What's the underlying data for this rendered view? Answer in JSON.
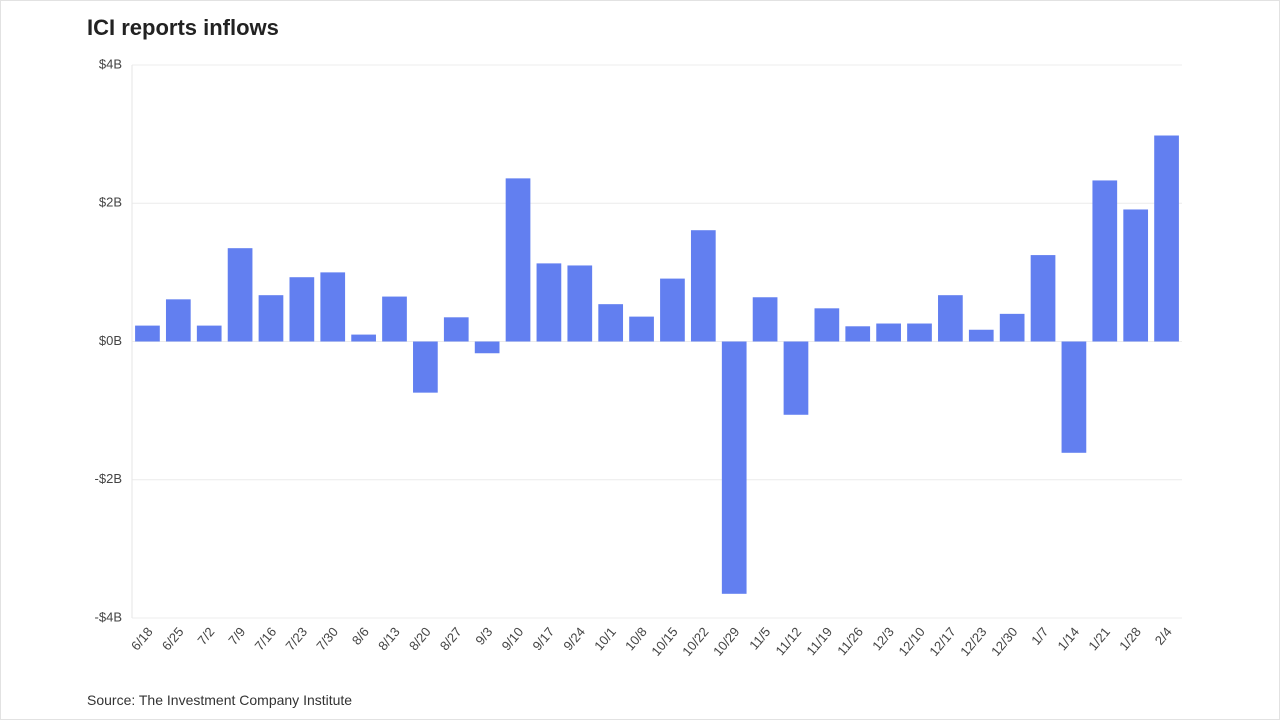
{
  "chart_data": {
    "type": "bar",
    "title": "ICI reports inflows",
    "source": "Source: The Investment Company Institute",
    "categories": [
      "6/18",
      "6/25",
      "7/2",
      "7/9",
      "7/16",
      "7/23",
      "7/30",
      "8/6",
      "8/13",
      "8/20",
      "8/27",
      "9/3",
      "9/10",
      "9/17",
      "9/24",
      "10/1",
      "10/8",
      "10/15",
      "10/22",
      "10/29",
      "11/5",
      "11/12",
      "11/19",
      "11/26",
      "12/3",
      "12/10",
      "12/17",
      "12/23",
      "12/30",
      "1/7",
      "1/14",
      "1/21",
      "1/28",
      "2/4"
    ],
    "values": [
      0.23,
      0.61,
      0.23,
      1.35,
      0.67,
      0.93,
      1.0,
      0.1,
      0.65,
      -0.74,
      0.35,
      -0.17,
      2.36,
      1.13,
      1.1,
      0.54,
      0.36,
      0.91,
      1.61,
      -3.65,
      0.64,
      -1.06,
      0.48,
      0.22,
      0.26,
      0.26,
      0.67,
      0.17,
      0.4,
      1.25,
      -1.61,
      2.33,
      1.91,
      2.98
    ],
    "color": "#627ff0",
    "ylim": [
      -4,
      4
    ],
    "yticks": [
      {
        "value": -4,
        "label": "-$4B"
      },
      {
        "value": -2,
        "label": "-$2B"
      },
      {
        "value": 0,
        "label": "$0B"
      },
      {
        "value": 2,
        "label": "$2B"
      },
      {
        "value": 4,
        "label": "$4B"
      }
    ],
    "grid": true
  }
}
